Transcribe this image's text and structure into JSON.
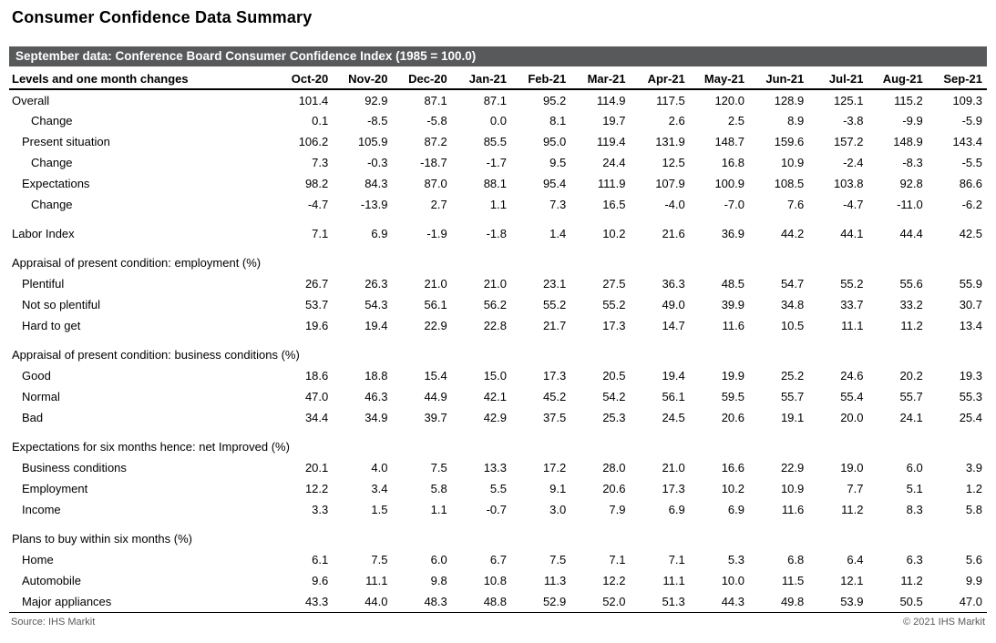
{
  "colors": {
    "banner_bg": "#58595b",
    "banner_text": "#ffffff",
    "footer_text": "#595959"
  },
  "footer": {
    "source": "Source: IHS Markit",
    "copyright": "© 2021 IHS Markit"
  },
  "chart_data": {
    "type": "table",
    "title": "Consumer Confidence Data Summary",
    "banner": "September data: Conference Board Consumer Confidence Index (1985 = 100.0)",
    "columns": [
      "Levels and one month changes",
      "Oct-20",
      "Nov-20",
      "Dec-20",
      "Jan-21",
      "Feb-21",
      "Mar-21",
      "Apr-21",
      "May-21",
      "Jun-21",
      "Jul-21",
      "Aug-21",
      "Sep-21"
    ],
    "rows": [
      {
        "label": "Overall",
        "indent": 0,
        "values": [
          "101.4",
          "92.9",
          "87.1",
          "87.1",
          "95.2",
          "114.9",
          "117.5",
          "120.0",
          "128.9",
          "125.1",
          "115.2",
          "109.3"
        ]
      },
      {
        "label": "Change",
        "indent": 2,
        "values": [
          "0.1",
          "-8.5",
          "-5.8",
          "0.0",
          "8.1",
          "19.7",
          "2.6",
          "2.5",
          "8.9",
          "-3.8",
          "-9.9",
          "-5.9"
        ]
      },
      {
        "label": "Present situation",
        "indent": 1,
        "values": [
          "106.2",
          "105.9",
          "87.2",
          "85.5",
          "95.0",
          "119.4",
          "131.9",
          "148.7",
          "159.6",
          "157.2",
          "148.9",
          "143.4"
        ]
      },
      {
        "label": "Change",
        "indent": 2,
        "values": [
          "7.3",
          "-0.3",
          "-18.7",
          "-1.7",
          "9.5",
          "24.4",
          "12.5",
          "16.8",
          "10.9",
          "-2.4",
          "-8.3",
          "-5.5"
        ]
      },
      {
        "label": "Expectations",
        "indent": 1,
        "values": [
          "98.2",
          "84.3",
          "87.0",
          "88.1",
          "95.4",
          "111.9",
          "107.9",
          "100.9",
          "108.5",
          "103.8",
          "92.8",
          "86.6"
        ]
      },
      {
        "label": "Change",
        "indent": 2,
        "values": [
          "-4.7",
          "-13.9",
          "2.7",
          "1.1",
          "7.3",
          "16.5",
          "-4.0",
          "-7.0",
          "7.6",
          "-4.7",
          "-11.0",
          "-6.2"
        ]
      },
      {
        "type": "spacer"
      },
      {
        "label": "Labor Index",
        "indent": 0,
        "values": [
          "7.1",
          "6.9",
          "-1.9",
          "-1.8",
          "1.4",
          "10.2",
          "21.6",
          "36.9",
          "44.2",
          "44.1",
          "44.4",
          "42.5"
        ]
      },
      {
        "type": "spacer"
      },
      {
        "type": "section",
        "label": "Appraisal of present condition: employment (%)"
      },
      {
        "label": "Plentiful",
        "indent": 1,
        "values": [
          "26.7",
          "26.3",
          "21.0",
          "21.0",
          "23.1",
          "27.5",
          "36.3",
          "48.5",
          "54.7",
          "55.2",
          "55.6",
          "55.9"
        ]
      },
      {
        "label": "Not so plentiful",
        "indent": 1,
        "values": [
          "53.7",
          "54.3",
          "56.1",
          "56.2",
          "55.2",
          "55.2",
          "49.0",
          "39.9",
          "34.8",
          "33.7",
          "33.2",
          "30.7"
        ]
      },
      {
        "label": "Hard to get",
        "indent": 1,
        "values": [
          "19.6",
          "19.4",
          "22.9",
          "22.8",
          "21.7",
          "17.3",
          "14.7",
          "11.6",
          "10.5",
          "11.1",
          "11.2",
          "13.4"
        ]
      },
      {
        "type": "spacer"
      },
      {
        "type": "section",
        "label": "Appraisal of present condition: business conditions (%)"
      },
      {
        "label": "Good",
        "indent": 1,
        "values": [
          "18.6",
          "18.8",
          "15.4",
          "15.0",
          "17.3",
          "20.5",
          "19.4",
          "19.9",
          "25.2",
          "24.6",
          "20.2",
          "19.3"
        ]
      },
      {
        "label": "Normal",
        "indent": 1,
        "values": [
          "47.0",
          "46.3",
          "44.9",
          "42.1",
          "45.2",
          "54.2",
          "56.1",
          "59.5",
          "55.7",
          "55.4",
          "55.7",
          "55.3"
        ]
      },
      {
        "label": "Bad",
        "indent": 1,
        "values": [
          "34.4",
          "34.9",
          "39.7",
          "42.9",
          "37.5",
          "25.3",
          "24.5",
          "20.6",
          "19.1",
          "20.0",
          "24.1",
          "25.4"
        ]
      },
      {
        "type": "spacer"
      },
      {
        "type": "section",
        "label": "Expectations for six months hence: net Improved (%)"
      },
      {
        "label": "Business conditions",
        "indent": 1,
        "values": [
          "20.1",
          "4.0",
          "7.5",
          "13.3",
          "17.2",
          "28.0",
          "21.0",
          "16.6",
          "22.9",
          "19.0",
          "6.0",
          "3.9"
        ]
      },
      {
        "label": "Employment",
        "indent": 1,
        "values": [
          "12.2",
          "3.4",
          "5.8",
          "5.5",
          "9.1",
          "20.6",
          "17.3",
          "10.2",
          "10.9",
          "7.7",
          "5.1",
          "1.2"
        ]
      },
      {
        "label": "Income",
        "indent": 1,
        "values": [
          "3.3",
          "1.5",
          "1.1",
          "-0.7",
          "3.0",
          "7.9",
          "6.9",
          "6.9",
          "11.6",
          "11.2",
          "8.3",
          "5.8"
        ]
      },
      {
        "type": "spacer"
      },
      {
        "type": "section",
        "label": "Plans to buy within six months (%)"
      },
      {
        "label": "Home",
        "indent": 1,
        "values": [
          "6.1",
          "7.5",
          "6.0",
          "6.7",
          "7.5",
          "7.1",
          "7.1",
          "5.3",
          "6.8",
          "6.4",
          "6.3",
          "5.6"
        ]
      },
      {
        "label": "Automobile",
        "indent": 1,
        "values": [
          "9.6",
          "11.1",
          "9.8",
          "10.8",
          "11.3",
          "12.2",
          "11.1",
          "10.0",
          "11.5",
          "12.1",
          "11.2",
          "9.9"
        ]
      },
      {
        "label": "Major appliances",
        "indent": 1,
        "values": [
          "43.3",
          "44.0",
          "48.3",
          "48.8",
          "52.9",
          "52.0",
          "51.3",
          "44.3",
          "49.8",
          "53.9",
          "50.5",
          "47.0"
        ]
      }
    ]
  }
}
